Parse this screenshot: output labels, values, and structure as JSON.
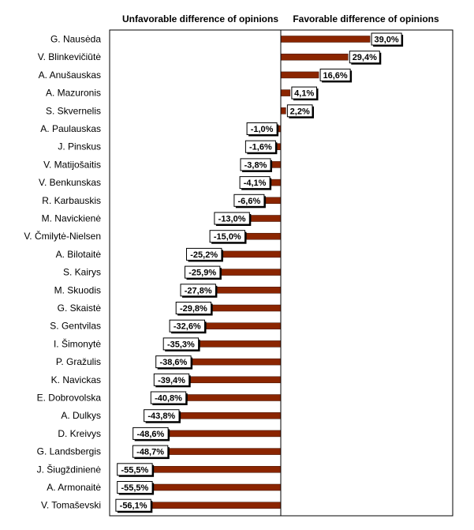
{
  "chart_data": {
    "type": "bar",
    "orientation": "horizontal",
    "header_left": "Unfavorable difference of opinions",
    "header_right": "Favorable difference of opinions",
    "categories": [
      "G. Nausėda",
      "V. Blinkevičiūtė",
      "A. Anušauskas",
      "A. Mazuronis",
      "S. Skvernelis",
      "A. Paulauskas",
      "J. Pinskus",
      "V. Matijošaitis",
      "V. Benkunskas",
      "R. Karbauskis",
      "M. Navickienė",
      "V. Čmilytė-Nielsen",
      "A. Bilotaitė",
      "S. Kairys",
      "M. Skuodis",
      "G. Skaistė",
      "S. Gentvilas",
      "I. Šimonytė",
      "P. Gražulis",
      "K. Navickas",
      "E. Dobrovolska",
      "A. Dulkys",
      "D. Kreivys",
      "G. Landsbergis",
      "J. Šiugždinienė",
      "A. Armonaitė",
      "V. Tomaševski"
    ],
    "values": [
      39.0,
      29.4,
      16.6,
      4.1,
      2.2,
      -1.0,
      -1.6,
      -3.8,
      -4.1,
      -6.6,
      -13.0,
      -15.0,
      -25.2,
      -25.9,
      -27.8,
      -29.8,
      -32.6,
      -35.3,
      -38.6,
      -39.4,
      -40.8,
      -43.8,
      -48.6,
      -48.7,
      -55.5,
      -55.5,
      -56.1
    ],
    "data_labels": [
      "39,0%",
      "29,4%",
      "16,6%",
      "4,1%",
      "2,2%",
      "-1,0%",
      "-1,6%",
      "-3,8%",
      "-4,1%",
      "-6,6%",
      "-13,0%",
      "-15,0%",
      "-25,2%",
      "-25,9%",
      "-27,8%",
      "-29,8%",
      "-32,6%",
      "-35,3%",
      "-38,6%",
      "-39,4%",
      "-40,8%",
      "-43,8%",
      "-48,6%",
      "-48,7%",
      "-55,5%",
      "-55,5%",
      "-56,1%"
    ],
    "xlim": [
      -75,
      75
    ],
    "grid": false,
    "bar_color": "#8B2500"
  }
}
